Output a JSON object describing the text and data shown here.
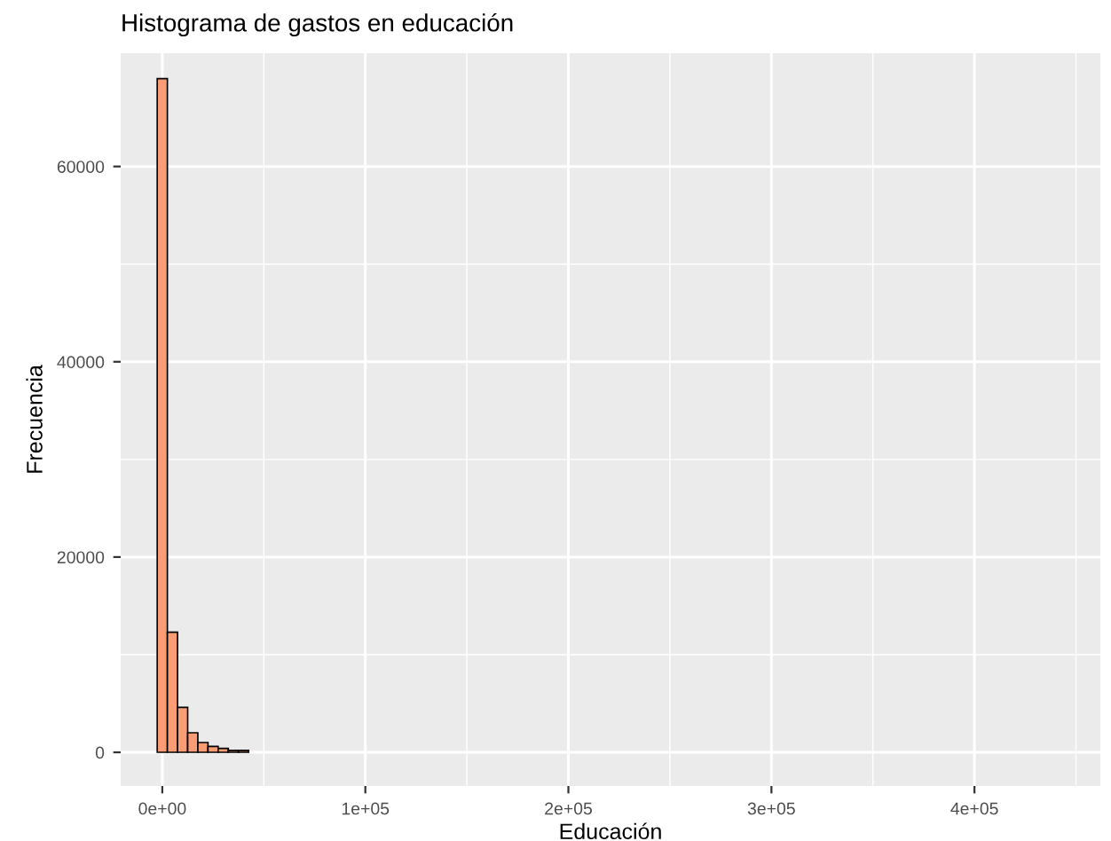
{
  "chart_data": {
    "type": "histogram",
    "title": "Histograma de gastos en educación",
    "xlabel": "Educación",
    "ylabel": "Frecuencia",
    "bins": [
      -2500,
      2500,
      7500,
      12500,
      17500,
      22500,
      27500,
      32500,
      37500,
      42500,
      47500,
      52500,
      57500,
      62500,
      67500,
      72500,
      77500,
      82500,
      87500,
      92500,
      97500,
      102500,
      107500,
      112500,
      117500,
      122500,
      127500,
      132500,
      137500,
      142500,
      147500,
      152500,
      157500,
      162500,
      167500,
      172500,
      177500,
      182500,
      187500,
      192500,
      197500,
      202500,
      207500,
      212500,
      217500,
      222500,
      227500,
      232500,
      237500,
      242500,
      247500,
      252500,
      257500,
      262500,
      267500,
      272500,
      277500,
      282500,
      287500,
      292500,
      297500,
      302500,
      307500,
      312500,
      317500,
      322500,
      327500,
      332500,
      337500,
      342500,
      347500,
      352500,
      357500,
      362500,
      367500,
      372500,
      377500,
      382500,
      387500,
      392500,
      397500,
      402500,
      407500,
      412500,
      417500,
      422500,
      427500,
      432500,
      437500,
      442500,
      447500,
      452500
    ],
    "values": [
      69000,
      12300,
      4600,
      2000,
      1000,
      600,
      400,
      200,
      200,
      0,
      0,
      0,
      0,
      0,
      0,
      0,
      0,
      0,
      0,
      0,
      0,
      0,
      0,
      0,
      0,
      0,
      0,
      0,
      0,
      0,
      0,
      0,
      0,
      0,
      0,
      0,
      0,
      0,
      0,
      0,
      0,
      0,
      0,
      0,
      0,
      0,
      0,
      0,
      0,
      0,
      0,
      0,
      0,
      0,
      0,
      0,
      0,
      0,
      0,
      0,
      0,
      0,
      0,
      0,
      0,
      0,
      0,
      0,
      0,
      0,
      0,
      0,
      0,
      0,
      0,
      0,
      0,
      0,
      0,
      0,
      0,
      0,
      0,
      0,
      0,
      0,
      0,
      0,
      0,
      0,
      0
    ],
    "color": "#fa9c74",
    "xlim": [
      -20500,
      462000
    ],
    "ylim": [
      -3450,
      71600
    ],
    "xticks": [
      {
        "value": 0,
        "label": "0e+00"
      },
      {
        "value": 100000,
        "label": "1e+05"
      },
      {
        "value": 200000,
        "label": "2e+05"
      },
      {
        "value": 300000,
        "label": "3e+05"
      },
      {
        "value": 400000,
        "label": "4e+05"
      }
    ],
    "yticks": [
      0,
      20000,
      40000,
      60000
    ],
    "grid": true
  }
}
